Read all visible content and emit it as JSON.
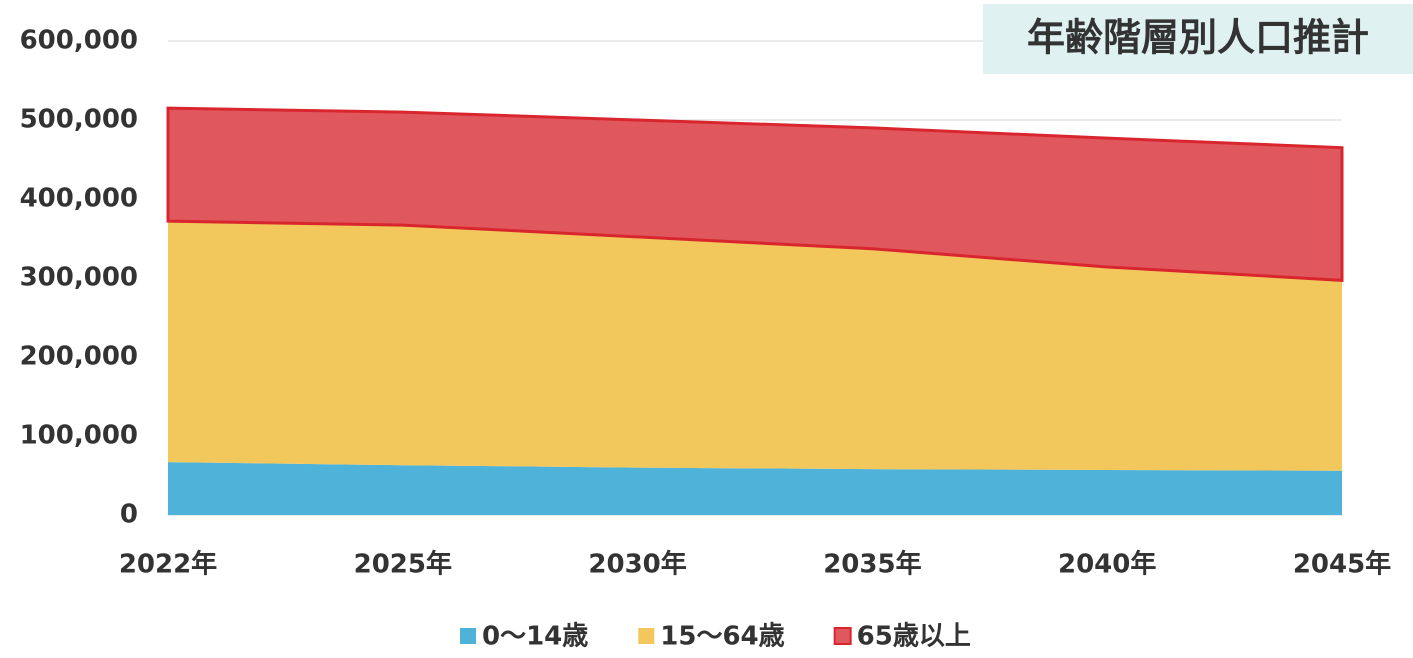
{
  "chart_data": {
    "type": "stacked_area",
    "title": "年齢階層別人口推計",
    "categories": [
      "2022年",
      "2025年",
      "2030年",
      "2035年",
      "2040年",
      "2045年"
    ],
    "series": [
      {
        "name": "0～14歳",
        "color": "#4fb3d9",
        "values": [
          67000,
          63000,
          60000,
          58000,
          57000,
          56000
        ]
      },
      {
        "name": "15～64歳",
        "color": "#f2c75c",
        "values": [
          305000,
          304000,
          292000,
          279000,
          257000,
          241000
        ]
      },
      {
        "name": "65歳以上",
        "color": "#e0575e",
        "values": [
          143000,
          143000,
          148000,
          153000,
          163000,
          168000
        ]
      }
    ],
    "ylim": [
      0,
      600000
    ],
    "yticks": [
      0,
      {
        "value": 100000,
        "label": "100,000"
      },
      {
        "value": 200000,
        "label": "200,000"
      },
      {
        "value": 300000,
        "label": "300,000"
      },
      {
        "value": 400000,
        "label": "400,000"
      },
      {
        "value": 500000,
        "label": "500,000"
      },
      {
        "value": 600000,
        "label": "600,000"
      }
    ],
    "grid": true
  }
}
